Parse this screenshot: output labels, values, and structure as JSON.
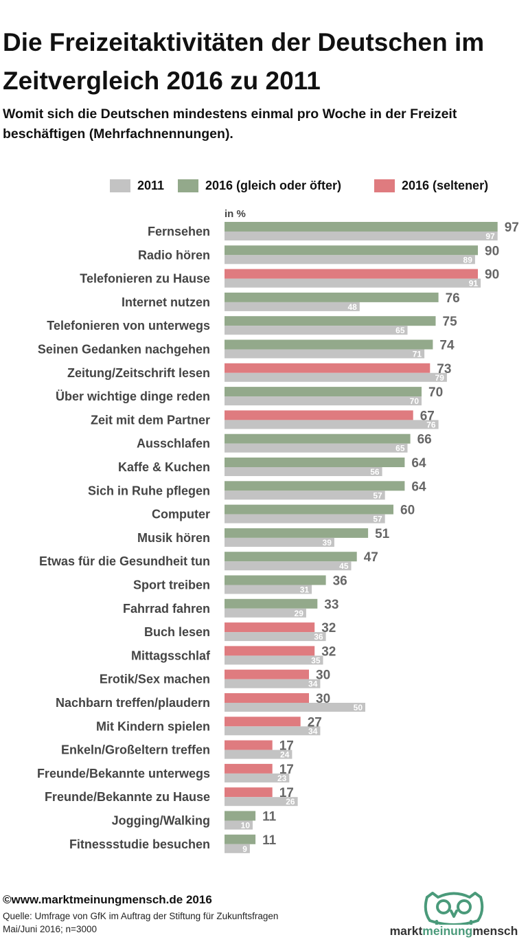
{
  "title": "Die Freizeitaktivitäten der Deutschen im Zeitvergleich 2016 zu 2011",
  "subtitle": "Womit sich die Deutschen mindestens einmal pro Woche in der Freizeit beschäftigen (Mehrfachnennungen).",
  "legend": [
    {
      "label": "2011",
      "color": "#c3c3c3"
    },
    {
      "label": "2016 (gleich oder öfter)",
      "color": "#93a98b"
    },
    {
      "label": "2016 (seltener)",
      "color": "#df7b7f"
    }
  ],
  "unit_label": "in %",
  "chart_data": {
    "type": "bar",
    "orientation": "horizontal",
    "title": "Die Freizeitaktivitäten der Deutschen im Zeitvergleich 2016 zu 2011",
    "unit": "in %",
    "xlim": [
      0,
      100
    ],
    "categories": [
      "Fernsehen",
      "Radio hören",
      "Telefonieren zu Hause",
      "Internet nutzen",
      "Telefonieren von unterwegs",
      "Seinen Gedanken nachgehen",
      "Zeitung/Zeitschrift lesen",
      "Über wichtige dinge reden",
      "Zeit mit dem Partner",
      "Ausschlafen",
      "Kaffe & Kuchen",
      "Sich in Ruhe pflegen",
      "Computer",
      "Musik hören",
      "Etwas für die Gesundheit tun",
      "Sport treiben",
      "Fahrrad fahren",
      "Buch lesen",
      "Mittagsschlaf",
      "Erotik/Sex machen",
      "Nachbarn treffen/plaudern",
      "Mit Kindern spielen",
      "Enkeln/Großeltern treffen",
      "Freunde/Bekannte unterwegs",
      "Freunde/Bekannte zu Hause",
      "Jogging/Walking",
      "Fitnessstudie besuchen"
    ],
    "series": [
      {
        "name": "2016",
        "values": [
          97,
          90,
          90,
          76,
          75,
          74,
          73,
          70,
          67,
          66,
          64,
          64,
          60,
          51,
          47,
          36,
          33,
          32,
          32,
          30,
          30,
          27,
          17,
          17,
          17,
          11,
          11
        ]
      },
      {
        "name": "2011",
        "values": [
          97,
          89,
          91,
          48,
          65,
          71,
          79,
          70,
          76,
          65,
          56,
          57,
          57,
          39,
          45,
          31,
          29,
          36,
          35,
          34,
          50,
          34,
          24,
          23,
          26,
          10,
          9
        ]
      }
    ],
    "colors": {
      "prev": "#c3c3c3",
      "up": "#93a98b",
      "down": "#df7b7f"
    },
    "legend_position": "top"
  },
  "footer": {
    "copyright": "©www.marktmeinungmensch.de 2016",
    "source_line1": "Quelle: Umfrage von GfK im Auftrag der Stiftung für Zukunftsfragen",
    "source_line2": "Mai/Juni 2016; n=3000"
  },
  "logo": {
    "text_part1": "markt",
    "text_part2": "meinung",
    "text_part3": "mensch",
    "icon": "owl-icon"
  }
}
